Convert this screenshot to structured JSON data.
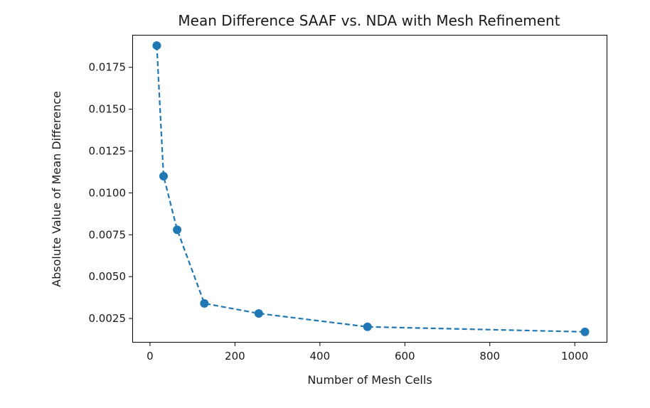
{
  "chart_data": {
    "type": "line",
    "title": "Mean Difference SAAF vs. NDA with Mesh Refinement",
    "xlabel": "Number of Mesh Cells",
    "ylabel": "Absolute Value of Mean Difference",
    "xlim": [
      -40,
      1075
    ],
    "ylim": [
      0.0011,
      0.0194
    ],
    "xticks": [
      0,
      200,
      400,
      600,
      800,
      1000
    ],
    "xtick_labels": [
      "0",
      "200",
      "400",
      "600",
      "800",
      "1000"
    ],
    "yticks": [
      0.0025,
      0.005,
      0.0075,
      0.01,
      0.0125,
      0.015,
      0.0175
    ],
    "ytick_labels": [
      "0.0025",
      "0.0050",
      "0.0075",
      "0.0100",
      "0.0125",
      "0.0150",
      "0.0175"
    ],
    "grid": false,
    "line_style": "dashed",
    "marker": "circle",
    "color": "#1f77b4",
    "series": [
      {
        "x": [
          16,
          32,
          64,
          128,
          256,
          512,
          1024
        ],
        "y": [
          0.0188,
          0.011,
          0.0078,
          0.0034,
          0.0028,
          0.002,
          0.0017
        ]
      }
    ]
  }
}
